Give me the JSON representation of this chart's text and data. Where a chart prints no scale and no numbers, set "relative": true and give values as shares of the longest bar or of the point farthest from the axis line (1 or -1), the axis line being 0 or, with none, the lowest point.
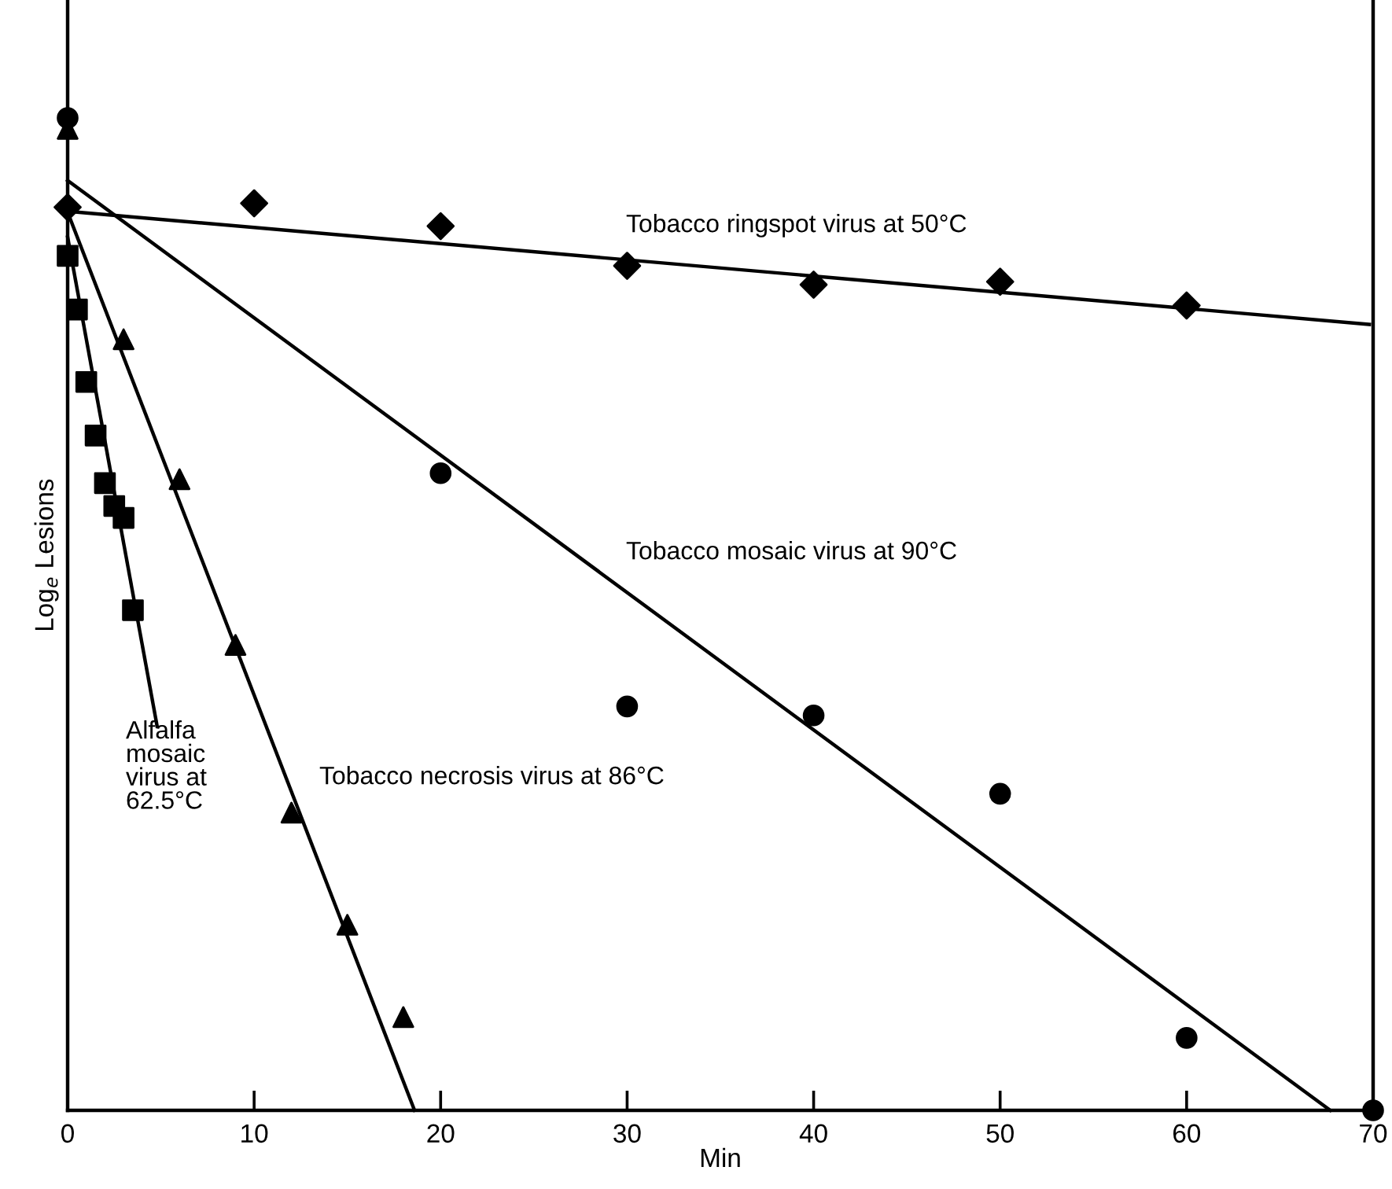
{
  "chart_data": {
    "type": "scatter",
    "relative": true,
    "xlabel": "Min",
    "ylabel": "Log$_{e}$ Lesions",
    "xlim": [
      0,
      70
    ],
    "xticks": [
      0,
      10,
      20,
      30,
      40,
      50,
      60,
      70
    ],
    "tick_labels": "x",
    "grid": false,
    "legend": false,
    "series": [
      {
        "marker": "circle",
        "color": "#000000",
        "x": [
          0,
          20,
          30,
          40,
          50,
          60,
          70
        ],
        "values": [
          1.0,
          0.642,
          0.407,
          0.398,
          0.319,
          0.073,
          0.0
        ]
      },
      {
        "type": "line",
        "marker": "none",
        "color": "#000000",
        "x": [
          0,
          67.7
        ],
        "values": [
          0.937,
          0.0
        ]
      },
      {
        "marker": "diamond",
        "color": "#000000",
        "x": [
          0,
          10,
          20,
          30,
          40,
          50,
          60
        ],
        "values": [
          0.91,
          0.914,
          0.891,
          0.851,
          0.832,
          0.835,
          0.811
        ]
      },
      {
        "type": "line",
        "marker": "none",
        "color": "#000000",
        "x": [
          0,
          69.8
        ],
        "values": [
          0.906,
          0.792
        ]
      },
      {
        "marker": "triangle",
        "color": "#000000",
        "x": [
          0,
          3,
          6,
          9,
          12,
          15,
          18
        ],
        "values": [
          0.989,
          0.777,
          0.636,
          0.469,
          0.3,
          0.187,
          0.094
        ]
      },
      {
        "type": "line",
        "marker": "none",
        "color": "#000000",
        "x": [
          0,
          18.6
        ],
        "values": [
          0.905,
          0.0
        ]
      },
      {
        "marker": "square",
        "color": "#000000",
        "x": [
          0,
          0.5,
          1,
          1.5,
          2,
          2.5,
          3,
          3.5
        ],
        "values": [
          0.861,
          0.807,
          0.734,
          0.68,
          0.632,
          0.609,
          0.597,
          0.504
        ]
      },
      {
        "type": "line",
        "marker": "none",
        "color": "#000000",
        "x": [
          0,
          4.8
        ],
        "values": [
          0.88,
          0.387
        ]
      }
    ],
    "annotations": [
      "Tobacco ringspot virus at 50°C",
      "Tobacco mosaic virus at 90°C",
      "Tobacco necrosis virus at 86°C",
      "Alfalfa\nmosaic\nvirus at\n62.5°C"
    ]
  }
}
